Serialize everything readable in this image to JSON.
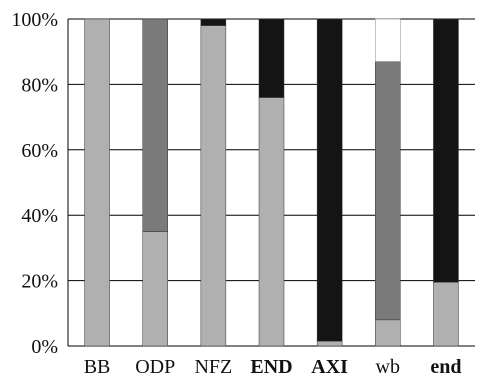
{
  "chart_data": {
    "type": "bar",
    "stacked": true,
    "categories": [
      "BB",
      "ODP",
      "NFZ",
      "END",
      "AXI",
      "wb",
      "end"
    ],
    "bold_categories": [
      "END",
      "AXI",
      "end"
    ],
    "series": [
      {
        "color": "#b0b0b0",
        "values": [
          100,
          35,
          98,
          76,
          1.5,
          8,
          19.5
        ]
      },
      {
        "color": "#7a7a7a",
        "values": [
          0,
          65,
          0,
          0,
          0,
          79,
          0
        ]
      },
      {
        "color": "#141414",
        "values": [
          0,
          0,
          2,
          24,
          98.5,
          0,
          80.5
        ]
      }
    ],
    "ylim": [
      0,
      100
    ],
    "yticks": [
      0,
      20,
      40,
      60,
      80,
      100
    ],
    "ytick_labels": [
      "0%",
      "20%",
      "40%",
      "60%",
      "80%",
      "100%"
    ],
    "grid": true,
    "xlabel": "",
    "ylabel": "",
    "title": ""
  }
}
